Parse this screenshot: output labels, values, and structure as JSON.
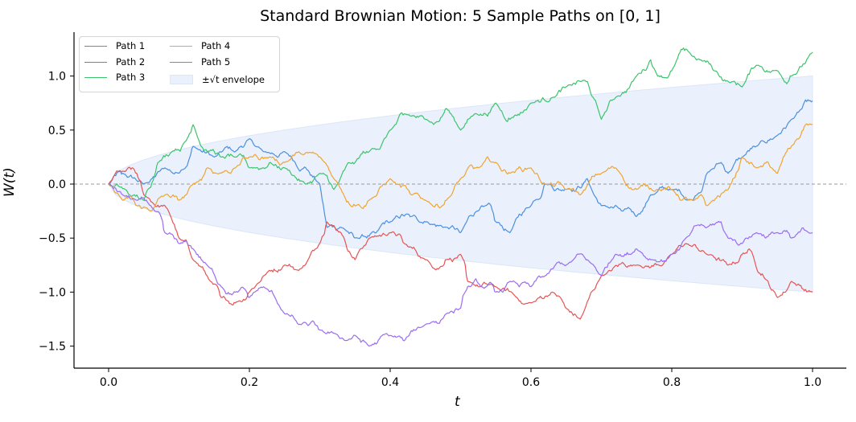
{
  "chart_data": {
    "type": "line",
    "title": "Standard Brownian Motion: 5 Sample Paths on [0, 1]",
    "xlabel": "t",
    "ylabel": "W(t)",
    "xlim": [
      -0.05,
      1.05
    ],
    "ylim": [
      -1.7,
      1.4
    ],
    "xticks": [
      0.0,
      0.2,
      0.4,
      0.6,
      0.8,
      1.0
    ],
    "xtick_labels": [
      "0.0",
      "0.2",
      "0.4",
      "0.6",
      "0.8",
      "1.0"
    ],
    "yticks": [
      1.0,
      0.5,
      0.0,
      -0.5,
      -1.0,
      -1.5
    ],
    "ytick_labels": [
      "1.0",
      "0.5",
      "0.0",
      "−0.5",
      "−1.0",
      "−1.5"
    ],
    "grid": false,
    "legend_position": "upper left",
    "reference_line": {
      "y": 0.0,
      "style": "dashed",
      "color": "#999999"
    },
    "envelope": {
      "label": "±√t envelope",
      "formula": "±sqrt(t)",
      "color": "#dbe6f8"
    },
    "series": [
      {
        "name": "Path 1",
        "color": "#4a8fe0",
        "t": [
          0,
          0.02,
          0.05,
          0.08,
          0.1,
          0.12,
          0.15,
          0.18,
          0.2,
          0.22,
          0.25,
          0.28,
          0.3,
          0.31,
          0.33,
          0.35,
          0.38,
          0.4,
          0.43,
          0.45,
          0.48,
          0.5,
          0.53,
          0.55,
          0.57,
          0.6,
          0.62,
          0.65,
          0.68,
          0.7,
          0.73,
          0.75,
          0.77,
          0.8,
          0.83,
          0.85,
          0.87,
          0.88,
          0.9,
          0.92,
          0.95,
          0.97,
          1.0
        ],
        "values": [
          0,
          0.1,
          0.0,
          0.15,
          0.1,
          0.35,
          0.25,
          0.3,
          0.42,
          0.3,
          0.3,
          0.15,
          0.0,
          -0.4,
          -0.4,
          -0.5,
          -0.45,
          -0.35,
          -0.3,
          -0.35,
          -0.4,
          -0.45,
          -0.2,
          -0.35,
          -0.45,
          -0.2,
          0.0,
          -0.05,
          0.05,
          -0.2,
          -0.25,
          -0.3,
          -0.1,
          -0.05,
          -0.15,
          0.1,
          0.2,
          0.1,
          0.25,
          0.35,
          0.45,
          0.6,
          0.77
        ]
      },
      {
        "name": "Path 2",
        "color": "#e65454",
        "t": [
          0,
          0.02,
          0.04,
          0.05,
          0.08,
          0.1,
          0.12,
          0.14,
          0.16,
          0.18,
          0.2,
          0.22,
          0.25,
          0.27,
          0.3,
          0.31,
          0.33,
          0.35,
          0.37,
          0.4,
          0.42,
          0.45,
          0.48,
          0.5,
          0.51,
          0.55,
          0.58,
          0.6,
          0.63,
          0.65,
          0.67,
          0.7,
          0.75,
          0.8,
          0.82,
          0.85,
          0.88,
          0.9,
          0.91,
          0.93,
          0.95,
          0.97,
          1.0
        ],
        "values": [
          0,
          0.12,
          0.1,
          -0.1,
          -0.2,
          -0.5,
          -0.7,
          -0.85,
          -1.05,
          -1.1,
          -1.0,
          -0.85,
          -0.75,
          -0.8,
          -0.55,
          -0.35,
          -0.45,
          -0.7,
          -0.5,
          -0.45,
          -0.55,
          -0.7,
          -0.7,
          -0.65,
          -0.9,
          -0.95,
          -1.05,
          -1.1,
          -1.0,
          -1.15,
          -1.25,
          -0.85,
          -0.75,
          -0.65,
          -0.55,
          -0.65,
          -0.75,
          -0.65,
          -0.6,
          -0.85,
          -1.05,
          -0.9,
          -1.0
        ]
      },
      {
        "name": "Path 3",
        "color": "#3cc46c",
        "t": [
          0,
          0.03,
          0.05,
          0.07,
          0.09,
          0.11,
          0.12,
          0.14,
          0.16,
          0.18,
          0.2,
          0.23,
          0.25,
          0.28,
          0.3,
          0.32,
          0.35,
          0.37,
          0.4,
          0.42,
          0.45,
          0.48,
          0.5,
          0.52,
          0.55,
          0.57,
          0.6,
          0.63,
          0.65,
          0.68,
          0.7,
          0.72,
          0.75,
          0.77,
          0.78,
          0.8,
          0.82,
          0.84,
          0.86,
          0.88,
          0.9,
          0.92,
          0.95,
          0.97,
          1.0
        ],
        "values": [
          0,
          -0.1,
          -0.15,
          0.2,
          0.3,
          0.4,
          0.55,
          0.3,
          0.25,
          0.25,
          0.15,
          0.2,
          0.15,
          0.0,
          0.1,
          -0.05,
          0.2,
          0.3,
          0.5,
          0.65,
          0.6,
          0.7,
          0.5,
          0.65,
          0.75,
          0.6,
          0.75,
          0.8,
          0.9,
          0.95,
          0.6,
          0.8,
          1.0,
          1.15,
          1.0,
          1.05,
          1.25,
          1.15,
          1.05,
          0.95,
          0.9,
          1.1,
          1.05,
          1.0,
          1.22
        ]
      },
      {
        "name": "Path 4",
        "color": "#f0a430",
        "t": [
          0,
          0.02,
          0.04,
          0.06,
          0.08,
          0.1,
          0.12,
          0.14,
          0.16,
          0.18,
          0.2,
          0.23,
          0.25,
          0.27,
          0.3,
          0.32,
          0.35,
          0.37,
          0.4,
          0.43,
          0.45,
          0.48,
          0.5,
          0.52,
          0.55,
          0.57,
          0.6,
          0.62,
          0.65,
          0.67,
          0.7,
          0.72,
          0.75,
          0.78,
          0.8,
          0.83,
          0.85,
          0.88,
          0.9,
          0.92,
          0.95,
          0.97,
          0.99,
          1.0
        ],
        "values": [
          0,
          -0.15,
          -0.2,
          -0.25,
          -0.1,
          -0.15,
          0.0,
          0.15,
          0.1,
          0.15,
          0.25,
          0.25,
          0.2,
          0.3,
          0.25,
          0.05,
          -0.2,
          -0.15,
          0.05,
          -0.1,
          -0.15,
          -0.15,
          0.05,
          0.15,
          0.2,
          0.1,
          0.15,
          0.0,
          -0.05,
          -0.1,
          0.1,
          0.15,
          -0.05,
          -0.05,
          -0.05,
          -0.15,
          -0.2,
          -0.05,
          0.25,
          0.15,
          0.1,
          0.35,
          0.55,
          0.55
        ]
      },
      {
        "name": "Path 5",
        "color": "#9b6cf0",
        "t": [
          0,
          0.02,
          0.04,
          0.06,
          0.08,
          0.1,
          0.12,
          0.14,
          0.16,
          0.18,
          0.2,
          0.22,
          0.25,
          0.27,
          0.3,
          0.32,
          0.35,
          0.37,
          0.4,
          0.42,
          0.45,
          0.48,
          0.5,
          0.51,
          0.53,
          0.55,
          0.57,
          0.6,
          0.62,
          0.65,
          0.68,
          0.7,
          0.72,
          0.75,
          0.77,
          0.8,
          0.82,
          0.85,
          0.87,
          0.88,
          0.9,
          0.92,
          0.95,
          0.97,
          1.0
        ],
        "values": [
          0,
          -0.1,
          -0.15,
          -0.2,
          -0.45,
          -0.55,
          -0.6,
          -0.75,
          -0.95,
          -1.0,
          -1.05,
          -0.95,
          -1.2,
          -1.3,
          -1.35,
          -1.38,
          -1.4,
          -1.5,
          -1.4,
          -1.45,
          -1.3,
          -1.2,
          -1.15,
          -0.95,
          -0.95,
          -1.0,
          -0.9,
          -0.95,
          -0.85,
          -0.75,
          -0.7,
          -0.85,
          -0.65,
          -0.6,
          -0.7,
          -0.65,
          -0.5,
          -0.4,
          -0.35,
          -0.5,
          -0.55,
          -0.45,
          -0.45,
          -0.5,
          -0.45
        ]
      }
    ]
  },
  "labels": {
    "title": "Standard Brownian Motion: 5 Sample Paths on [0, 1]",
    "xlabel": "t",
    "ylabel": "W(t)"
  },
  "legend": {
    "items": [
      {
        "label": "Path 1",
        "color": "#4a8fe0",
        "kind": "line"
      },
      {
        "label": "Path 2",
        "color": "#e65454",
        "kind": "line"
      },
      {
        "label": "Path 3",
        "color": "#3cc46c",
        "kind": "line"
      },
      {
        "label": "Path 4",
        "color": "#f0a430",
        "kind": "line"
      },
      {
        "label": "Path 5",
        "color": "#9b6cf0",
        "kind": "line"
      },
      {
        "label": "±√t envelope",
        "color": "#eaf1fc",
        "kind": "patch"
      }
    ]
  }
}
